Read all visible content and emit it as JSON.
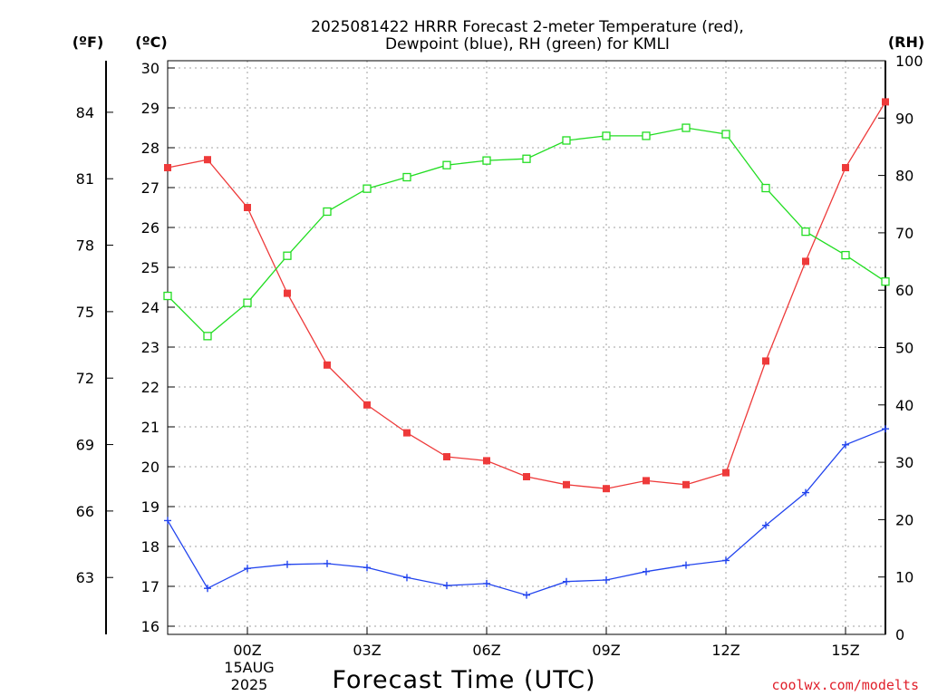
{
  "chart_data": {
    "type": "line",
    "title_line1": "2025081422 HRRR Forecast 2-meter Temperature (red),",
    "title_line2": "Dewpoint (blue), RH (green) for KMLI",
    "xlabel": "Forecast Time (UTC)",
    "credit": "coolwx.com/modelts",
    "units": {
      "fahrenheit": "(ºF)",
      "celsius": "(ºC)",
      "rh": "(RH)"
    },
    "x_ticks": [
      {
        "hour": 0,
        "label": "00Z"
      },
      {
        "hour": 3,
        "label": "03Z"
      },
      {
        "hour": 6,
        "label": "06Z"
      },
      {
        "hour": 9,
        "label": "09Z"
      },
      {
        "hour": 12,
        "label": "12Z"
      },
      {
        "hour": 15,
        "label": "15Z"
      }
    ],
    "date_label": [
      "15AUG",
      "2025"
    ],
    "x_hours": [
      -2,
      -1,
      0,
      1,
      2,
      3,
      4,
      5,
      6,
      7,
      8,
      9,
      10,
      11,
      12,
      13,
      14,
      15,
      16
    ],
    "xlim": [
      -2,
      16
    ],
    "celsius_range": [
      15.8,
      30.2
    ],
    "celsius_ticks": [
      16,
      17,
      18,
      19,
      20,
      21,
      22,
      23,
      24,
      25,
      26,
      27,
      28,
      29,
      30
    ],
    "fahrenheit_ticks": [
      63,
      66,
      69,
      72,
      75,
      78,
      81,
      84
    ],
    "rh_range": [
      0,
      100
    ],
    "rh_ticks": [
      0,
      10,
      20,
      30,
      40,
      50,
      60,
      70,
      80,
      90,
      100
    ],
    "grid": true,
    "series": [
      {
        "name": "2-meter Temperature",
        "color": "#ee3a3a",
        "marker": "filled-square",
        "axis": "celsius",
        "values": [
          27.5,
          27.7,
          26.5,
          24.35,
          22.55,
          21.55,
          20.85,
          20.25,
          20.15,
          19.75,
          19.55,
          19.45,
          19.65,
          19.55,
          19.85,
          22.65,
          25.15,
          27.5,
          29.15
        ]
      },
      {
        "name": "Dewpoint",
        "color": "#2244ee",
        "marker": "plus",
        "axis": "celsius",
        "values": [
          18.65,
          16.95,
          17.45,
          17.55,
          17.57,
          17.47,
          17.22,
          17.02,
          17.07,
          16.78,
          17.12,
          17.16,
          17.37,
          17.53,
          17.65,
          18.53,
          19.35,
          20.55,
          20.95
        ]
      },
      {
        "name": "RH",
        "color": "#22dd22",
        "marker": "open-square",
        "axis": "rh",
        "values": [
          59,
          52,
          57.8,
          66,
          73.7,
          77.7,
          79.7,
          81.8,
          82.6,
          82.9,
          86.1,
          86.9,
          86.9,
          88.3,
          87.2,
          77.8,
          70.2,
          66.1,
          61.5
        ]
      }
    ]
  }
}
